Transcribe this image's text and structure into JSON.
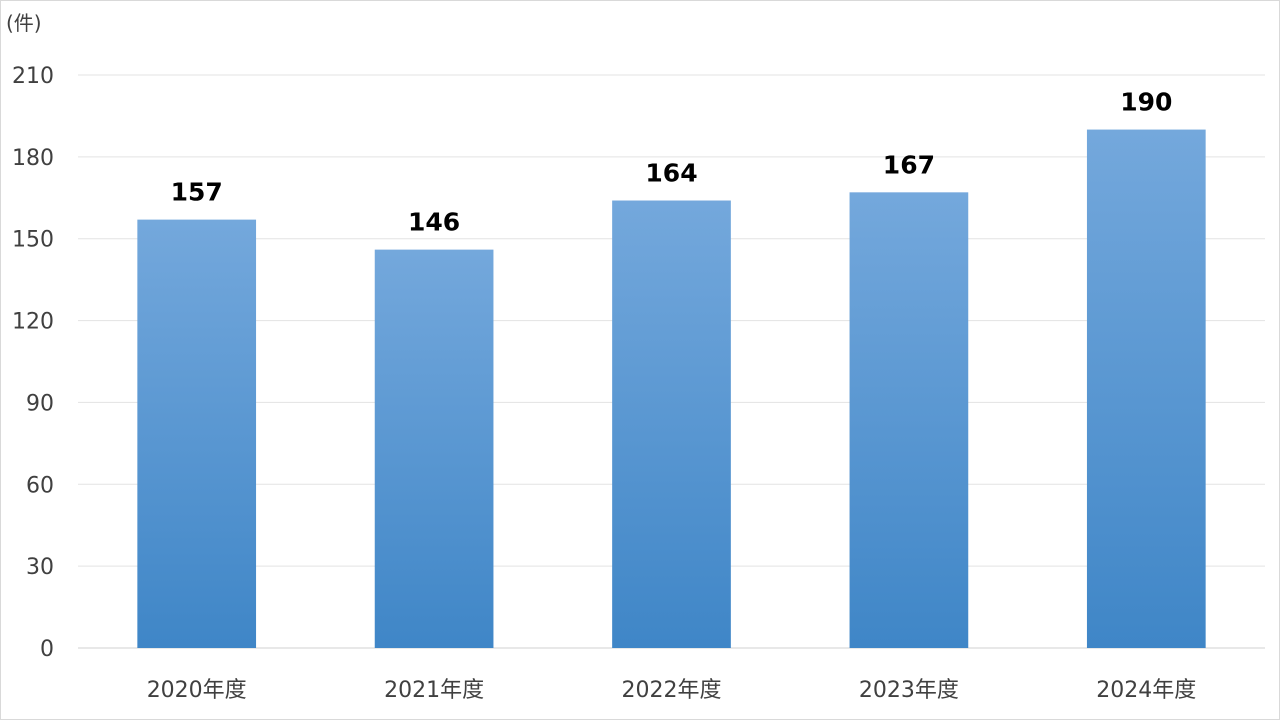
{
  "chart_data": {
    "type": "bar",
    "unit_label": "(件)",
    "categories": [
      "2020年度",
      "2021年度",
      "2022年度",
      "2023年度",
      "2024年度"
    ],
    "values": [
      157,
      146,
      164,
      167,
      190
    ],
    "data_labels": [
      "157",
      "146",
      "164",
      "167",
      "190"
    ],
    "ylim": [
      0,
      210
    ],
    "yticks": [
      "0",
      "30",
      "60",
      "90",
      "120",
      "150",
      "180",
      "210"
    ],
    "grid": true,
    "legend": "none",
    "bar_color_top": "#74a8dc",
    "bar_color_bottom": "#3f86c7"
  }
}
